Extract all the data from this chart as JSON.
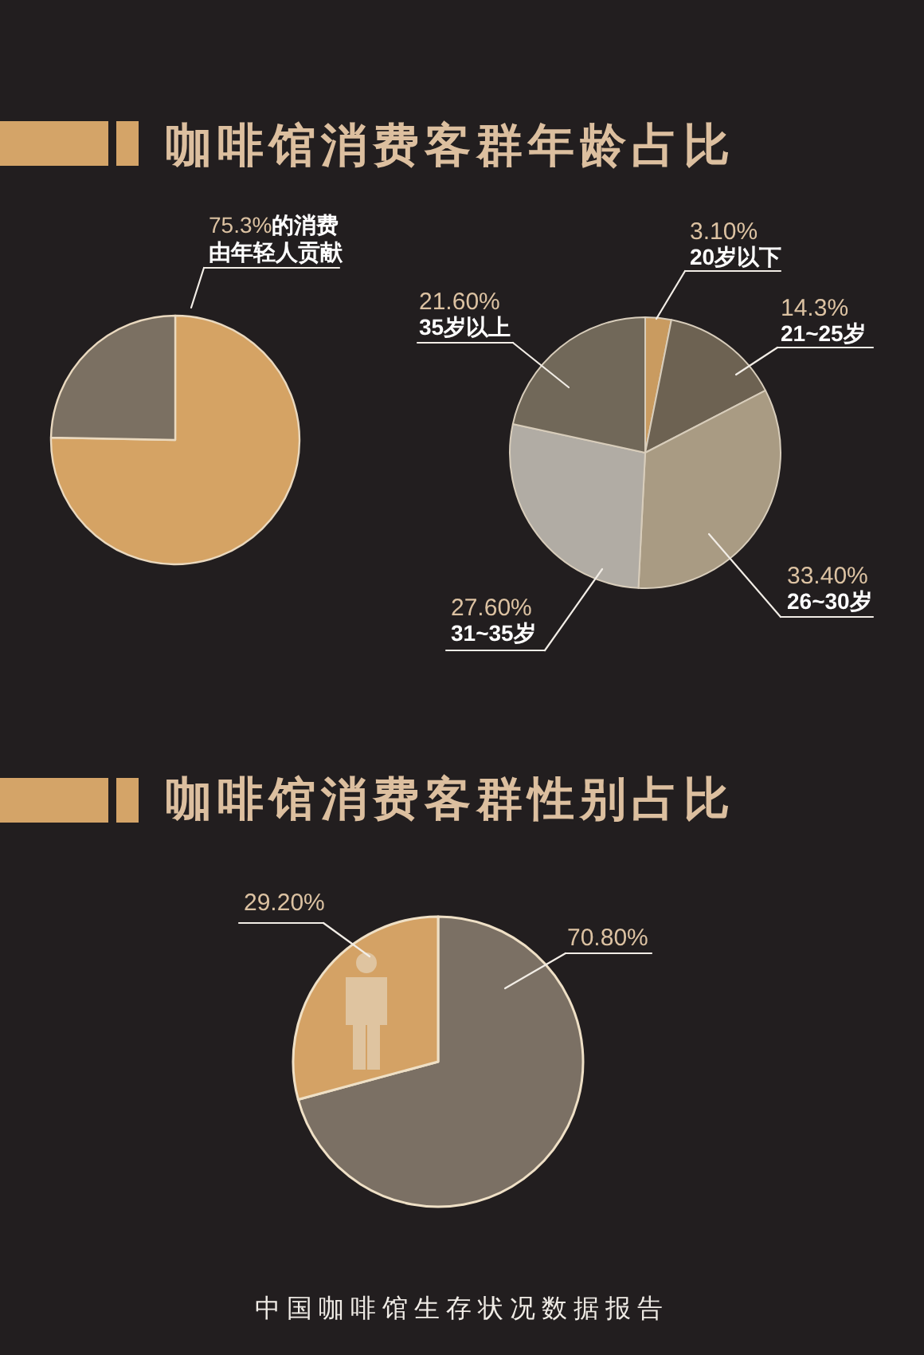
{
  "chart_data": [
    {
      "type": "pie",
      "title": "咖啡馆消费客群年龄占比",
      "categories": [
        null,
        null
      ],
      "values": [
        75.3,
        24.7
      ],
      "colors": [
        "#d5a364",
        "#7b7062"
      ],
      "annotations": [
        "75.3%的消费由年轻人贡献"
      ]
    },
    {
      "type": "pie",
      "categories": [
        "20岁以下",
        "21~25岁",
        "26~30岁",
        "31~35岁",
        "35岁以上"
      ],
      "values": [
        3.1,
        14.3,
        33.4,
        27.6,
        21.6
      ],
      "colors": [
        "#c99b60",
        "#6d6252",
        "#a99b83",
        "#b1aca4",
        "#716859"
      ],
      "value_labels": [
        "3.10%",
        "14.3%",
        "33.40%",
        "27.60%",
        "21.60%"
      ]
    },
    {
      "type": "pie",
      "title": "咖啡馆消费客群性别占比",
      "categories": [
        null,
        null
      ],
      "values": [
        70.8,
        29.2
      ],
      "colors": [
        "#7b7064",
        "#d4a265"
      ],
      "value_labels": [
        "70.80%",
        "29.20%"
      ],
      "annotations": [
        "中国咖啡馆生存状况数据报告"
      ]
    }
  ]
}
